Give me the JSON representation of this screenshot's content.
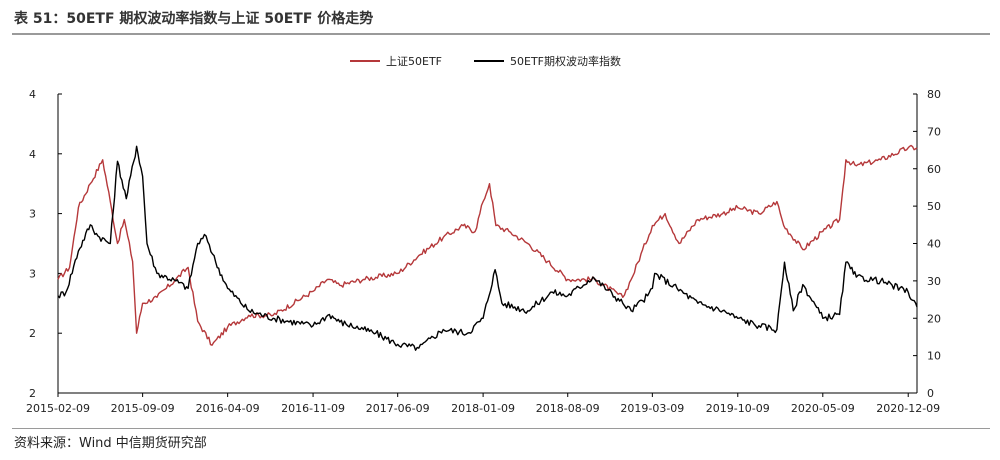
{
  "header": {
    "title": "表 51：50ETF 期权波动率指数与上证 50ETF 价格走势"
  },
  "footer": {
    "source": "资料来源：Wind  中信期货研究部"
  },
  "colors": {
    "etf_line": "#b5383a",
    "vol_line": "#000000",
    "axis": "#000000"
  },
  "chart_data": {
    "type": "line",
    "title": "",
    "legend": [
      "上证50ETF",
      "50ETF期权波动率指数"
    ],
    "legend_position": "top-center",
    "x_ticks": [
      "2015-02-09",
      "2015-09-09",
      "2016-04-09",
      "2016-11-09",
      "2017-06-09",
      "2018-01-09",
      "2018-08-09",
      "2019-03-09",
      "2019-10-09",
      "2020-05-09",
      "2020-12-09"
    ],
    "x_range": [
      "2015-02-09",
      "2020-12-31"
    ],
    "y_left": {
      "range": [
        1.5,
        4.0
      ],
      "ticks": [
        1.5,
        2.0,
        2.5,
        3.0,
        3.5,
        4.0
      ],
      "tick_labels": [
        "2",
        "2",
        "3",
        "3",
        "4",
        "4"
      ]
    },
    "y_right": {
      "range": [
        0,
        80
      ],
      "ticks": [
        0,
        10,
        20,
        30,
        40,
        50,
        60,
        70,
        80
      ],
      "tick_labels": [
        "0",
        "10",
        "20",
        "30",
        "40",
        "50",
        "60",
        "70",
        "80"
      ]
    },
    "series": [
      {
        "name": "上证50ETF",
        "axis": "left",
        "points": [
          [
            "2015-02-09",
            2.45
          ],
          [
            "2015-03-10",
            2.55
          ],
          [
            "2015-04-01",
            3.05
          ],
          [
            "2015-05-01",
            3.25
          ],
          [
            "2015-06-01",
            3.45
          ],
          [
            "2015-06-20",
            3.1
          ],
          [
            "2015-07-08",
            2.75
          ],
          [
            "2015-07-25",
            2.95
          ],
          [
            "2015-08-15",
            2.6
          ],
          [
            "2015-08-25",
            2.0
          ],
          [
            "2015-09-09",
            2.25
          ],
          [
            "2015-10-15",
            2.3
          ],
          [
            "2015-12-01",
            2.45
          ],
          [
            "2016-01-01",
            2.55
          ],
          [
            "2016-01-25",
            2.1
          ],
          [
            "2016-03-01",
            1.9
          ],
          [
            "2016-04-09",
            2.05
          ],
          [
            "2016-06-01",
            2.15
          ],
          [
            "2016-08-01",
            2.15
          ],
          [
            "2016-11-09",
            2.35
          ],
          [
            "2016-12-15",
            2.45
          ],
          [
            "2017-01-15",
            2.4
          ],
          [
            "2017-03-15",
            2.45
          ],
          [
            "2017-06-09",
            2.5
          ],
          [
            "2017-08-01",
            2.65
          ],
          [
            "2017-10-01",
            2.8
          ],
          [
            "2017-11-20",
            2.9
          ],
          [
            "2017-12-20",
            2.85
          ],
          [
            "2018-01-09",
            3.1
          ],
          [
            "2018-01-25",
            3.25
          ],
          [
            "2018-02-10",
            2.9
          ],
          [
            "2018-03-15",
            2.85
          ],
          [
            "2018-05-01",
            2.75
          ],
          [
            "2018-06-20",
            2.6
          ],
          [
            "2018-08-09",
            2.45
          ],
          [
            "2018-10-15",
            2.45
          ],
          [
            "2018-12-25",
            2.3
          ],
          [
            "2019-01-15",
            2.45
          ],
          [
            "2019-03-09",
            2.9
          ],
          [
            "2019-04-10",
            3.0
          ],
          [
            "2019-05-15",
            2.75
          ],
          [
            "2019-07-01",
            2.95
          ],
          [
            "2019-09-01",
            3.0
          ],
          [
            "2019-10-09",
            3.05
          ],
          [
            "2019-12-01",
            3.0
          ],
          [
            "2020-01-15",
            3.1
          ],
          [
            "2020-02-01",
            2.9
          ],
          [
            "2020-03-20",
            2.7
          ],
          [
            "2020-05-09",
            2.85
          ],
          [
            "2020-06-20",
            2.95
          ],
          [
            "2020-07-06",
            3.45
          ],
          [
            "2020-08-01",
            3.4
          ],
          [
            "2020-10-01",
            3.45
          ],
          [
            "2020-12-09",
            3.55
          ],
          [
            "2020-12-31",
            3.55
          ]
        ]
      },
      {
        "name": "50ETF期权波动率指数",
        "axis": "right",
        "points": [
          [
            "2015-02-09",
            26
          ],
          [
            "2015-03-01",
            27
          ],
          [
            "2015-04-01",
            38
          ],
          [
            "2015-05-01",
            45
          ],
          [
            "2015-05-20",
            42
          ],
          [
            "2015-06-20",
            40
          ],
          [
            "2015-07-08",
            62
          ],
          [
            "2015-07-30",
            52
          ],
          [
            "2015-08-25",
            66
          ],
          [
            "2015-09-09",
            58
          ],
          [
            "2015-09-20",
            40
          ],
          [
            "2015-10-15",
            32
          ],
          [
            "2015-12-01",
            30
          ],
          [
            "2016-01-01",
            28
          ],
          [
            "2016-01-25",
            40
          ],
          [
            "2016-02-15",
            42
          ],
          [
            "2016-03-10",
            35
          ],
          [
            "2016-04-09",
            28
          ],
          [
            "2016-06-01",
            22
          ],
          [
            "2016-08-01",
            20
          ],
          [
            "2016-11-09",
            18
          ],
          [
            "2016-12-20",
            21
          ],
          [
            "2017-01-15",
            19
          ],
          [
            "2017-03-15",
            17
          ],
          [
            "2017-04-15",
            16
          ],
          [
            "2017-06-09",
            13
          ],
          [
            "2017-08-01",
            12
          ],
          [
            "2017-10-01",
            17
          ],
          [
            "2017-12-01",
            16
          ],
          [
            "2018-01-09",
            20
          ],
          [
            "2018-02-08",
            33
          ],
          [
            "2018-02-25",
            24
          ],
          [
            "2018-05-01",
            22
          ],
          [
            "2018-07-01",
            27
          ],
          [
            "2018-08-09",
            26
          ],
          [
            "2018-10-11",
            31
          ],
          [
            "2018-12-25",
            24
          ],
          [
            "2019-01-15",
            22
          ],
          [
            "2019-02-25",
            26
          ],
          [
            "2019-03-09",
            28
          ],
          [
            "2019-03-15",
            32
          ],
          [
            "2019-05-10",
            28
          ],
          [
            "2019-07-01",
            24
          ],
          [
            "2019-09-01",
            22
          ],
          [
            "2019-10-09",
            20
          ],
          [
            "2019-12-01",
            18
          ],
          [
            "2020-01-15",
            17
          ],
          [
            "2020-02-03",
            35
          ],
          [
            "2020-02-25",
            22
          ],
          [
            "2020-03-20",
            29
          ],
          [
            "2020-05-09",
            20
          ],
          [
            "2020-06-20",
            21
          ],
          [
            "2020-07-06",
            35
          ],
          [
            "2020-08-01",
            31
          ],
          [
            "2020-10-01",
            30
          ],
          [
            "2020-12-09",
            27
          ],
          [
            "2020-12-31",
            23
          ]
        ]
      }
    ]
  }
}
